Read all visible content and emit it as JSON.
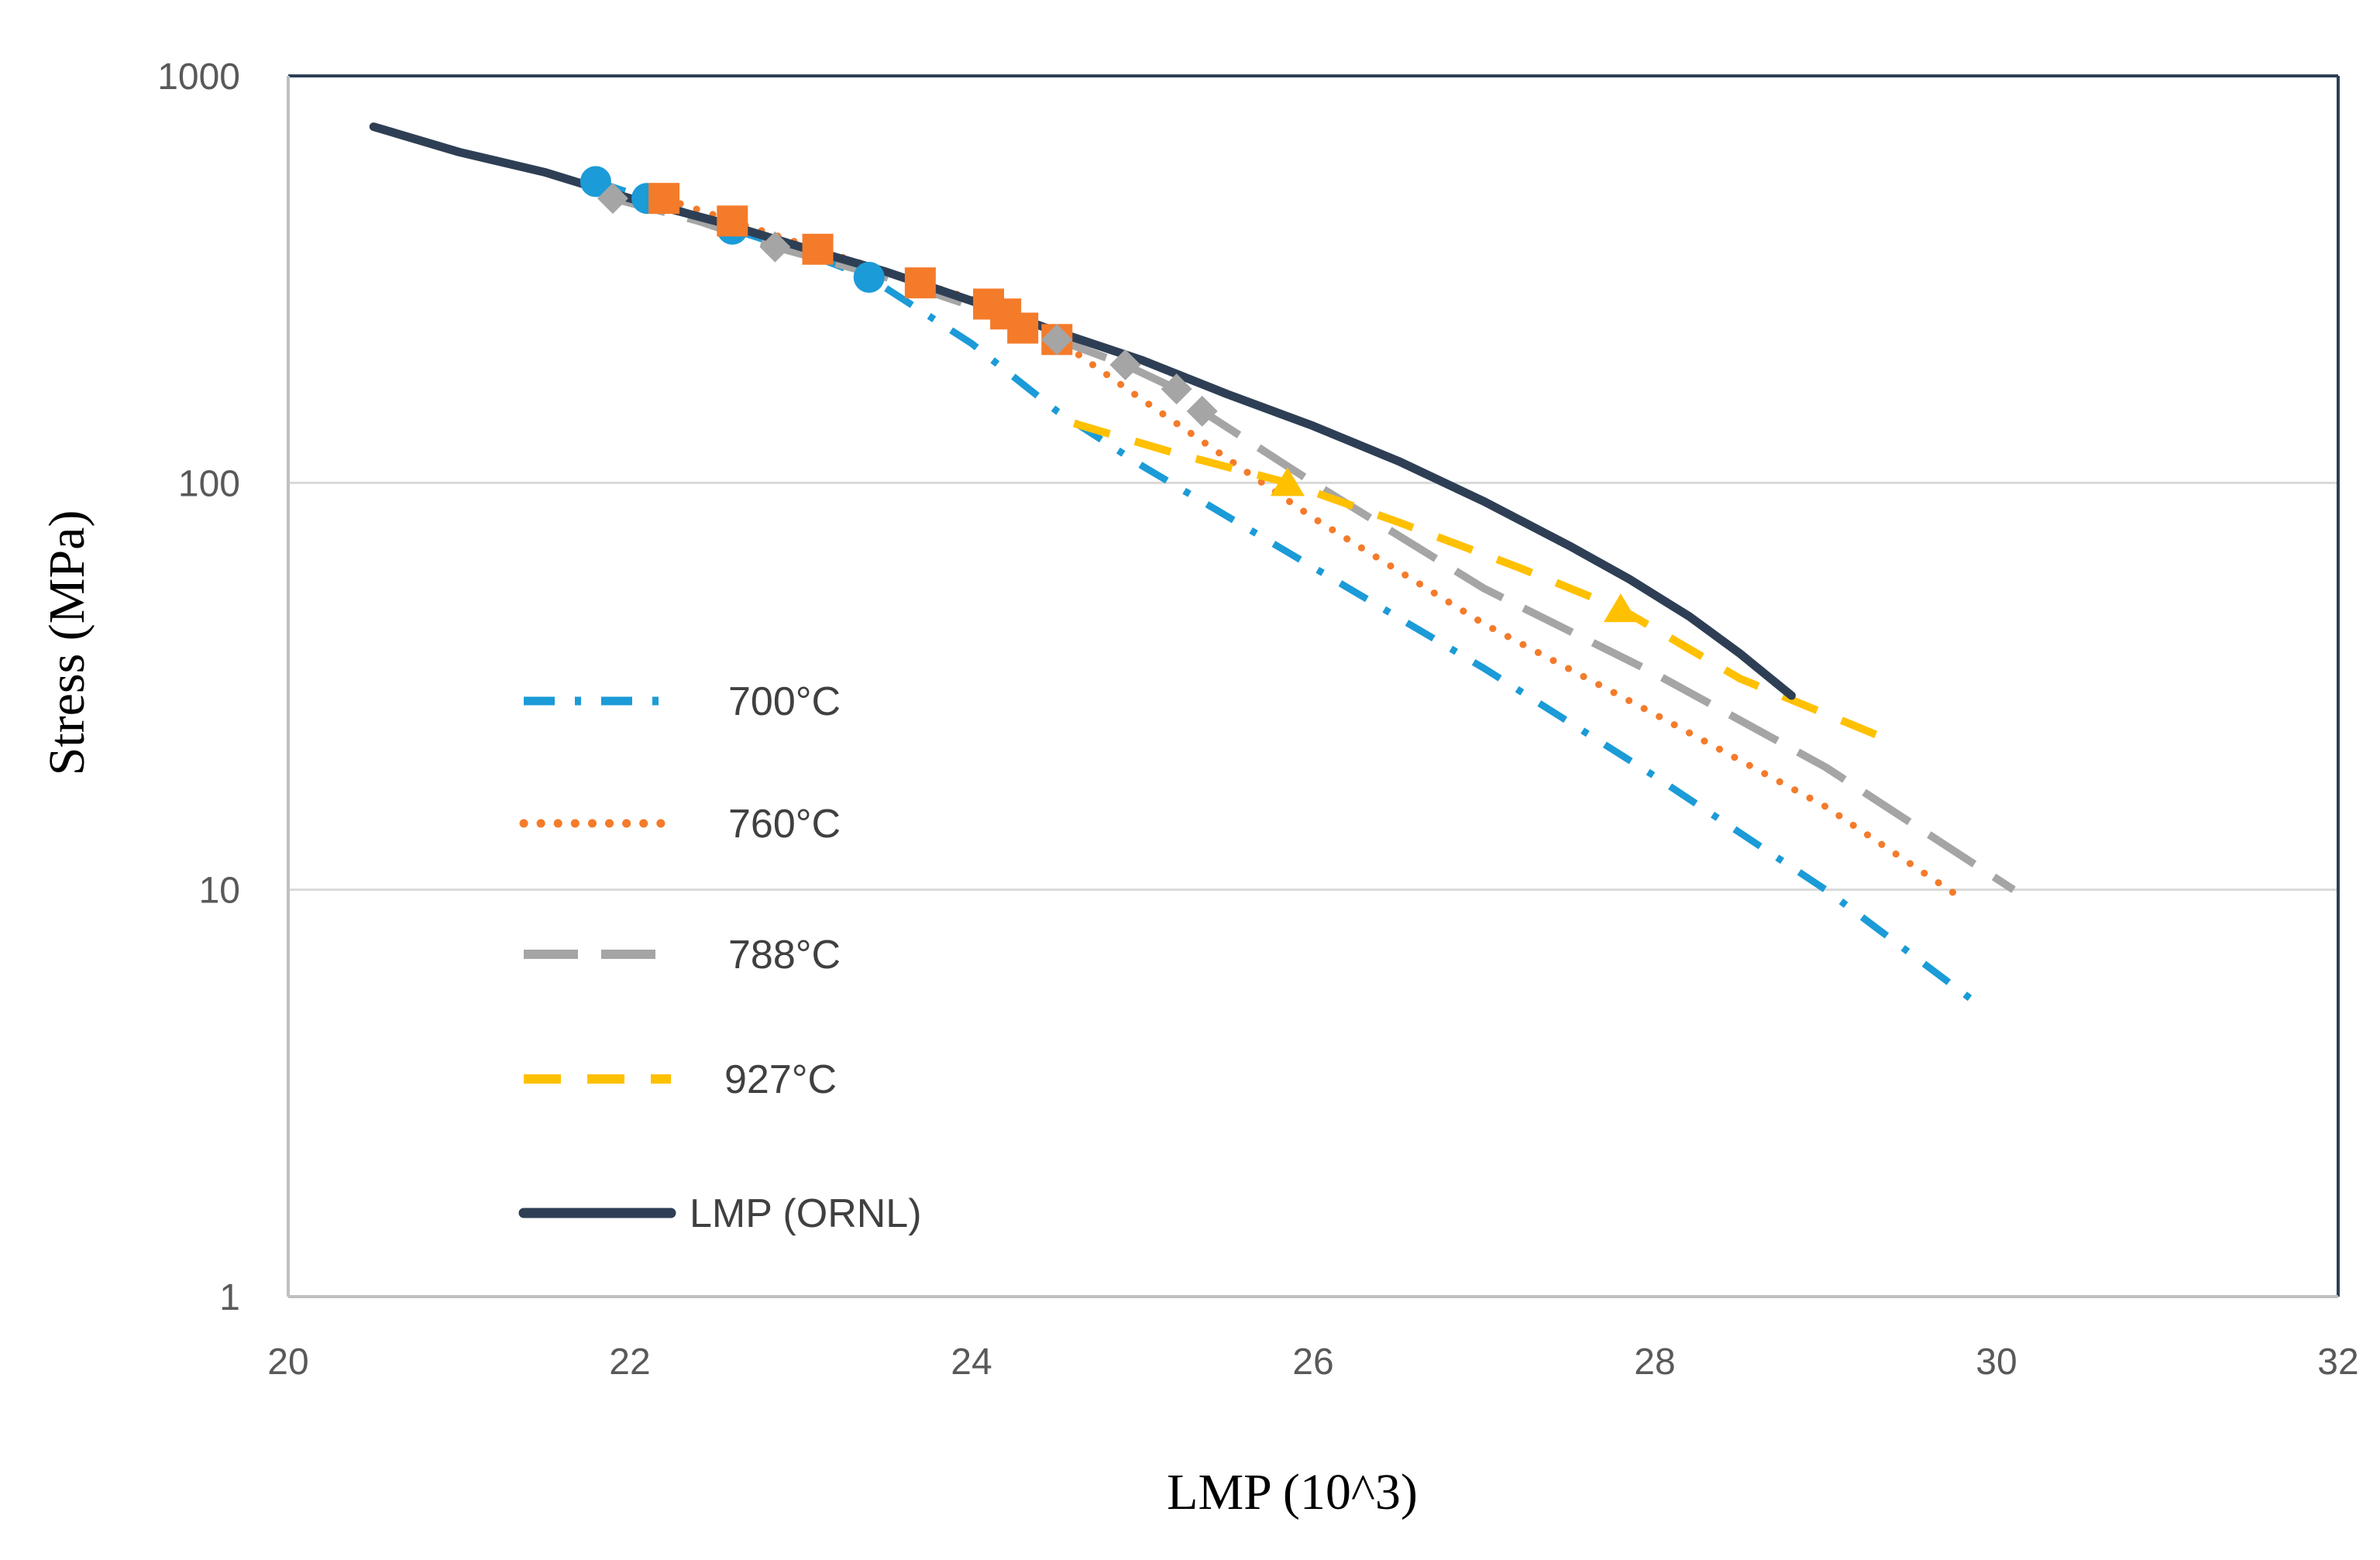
{
  "chart_data": {
    "type": "line",
    "title": "",
    "xlabel": "LMP (10^3)",
    "ylabel": "Stress (MPa)",
    "xlim": [
      20,
      32
    ],
    "ylim": [
      1,
      1000
    ],
    "yscale": "log",
    "x_ticks": [
      "20",
      "22",
      "24",
      "26",
      "28",
      "30",
      "32"
    ],
    "y_ticks": [
      "1",
      "10",
      "100",
      "1000"
    ],
    "gridlines": "horizontal",
    "legend_position": "left-middle",
    "series": [
      {
        "name": "700°C",
        "color": "#1B9BD7",
        "line_style": "dash-dot",
        "marker": "circle",
        "points": [
          [
            21.8,
            550
          ],
          [
            22.1,
            500
          ],
          [
            22.6,
            420
          ],
          [
            23.0,
            370
          ],
          [
            23.4,
            320
          ],
          [
            24.0,
            220
          ],
          [
            24.5,
            150
          ],
          [
            25.0,
            110
          ],
          [
            26.0,
            62
          ],
          [
            27.0,
            35
          ],
          [
            28.0,
            19
          ],
          [
            29.0,
            10
          ],
          [
            29.9,
            5.2
          ]
        ],
        "markers": [
          [
            21.8,
            550
          ],
          [
            22.1,
            500
          ],
          [
            22.6,
            420
          ],
          [
            23.4,
            320
          ]
        ]
      },
      {
        "name": "760°C",
        "color": "#F47B2A",
        "line_style": "dotted",
        "marker": "square",
        "points": [
          [
            22.2,
            500
          ],
          [
            22.6,
            440
          ],
          [
            23.1,
            375
          ],
          [
            23.7,
            310
          ],
          [
            24.1,
            275
          ],
          [
            24.3,
            245
          ],
          [
            24.5,
            225
          ],
          [
            25.0,
            160
          ],
          [
            26.0,
            82
          ],
          [
            27.0,
            45
          ],
          [
            28.0,
            27
          ],
          [
            29.0,
            16
          ],
          [
            29.8,
            9.5
          ]
        ],
        "markers": [
          [
            22.2,
            500
          ],
          [
            22.6,
            440
          ],
          [
            23.1,
            375
          ],
          [
            23.7,
            310
          ],
          [
            24.1,
            275
          ],
          [
            24.2,
            260
          ],
          [
            24.3,
            240
          ],
          [
            24.5,
            225
          ]
        ]
      },
      {
        "name": "788°C",
        "color": "#A5A5A5",
        "line_style": "long-dash",
        "marker": "diamond",
        "points": [
          [
            21.9,
            500
          ],
          [
            22.4,
            440
          ],
          [
            22.85,
            380
          ],
          [
            23.5,
            320
          ],
          [
            24.2,
            255
          ],
          [
            24.5,
            225
          ],
          [
            24.9,
            195
          ],
          [
            25.2,
            170
          ],
          [
            25.35,
            150
          ],
          [
            26.0,
            100
          ],
          [
            27.0,
            55
          ],
          [
            28.0,
            34
          ],
          [
            29.0,
            20
          ],
          [
            30.1,
            10
          ]
        ],
        "markers": [
          [
            21.9,
            500
          ],
          [
            22.85,
            380
          ],
          [
            24.5,
            225
          ],
          [
            24.9,
            195
          ],
          [
            25.2,
            170
          ],
          [
            25.35,
            150
          ]
        ]
      },
      {
        "name": "927°C",
        "color": "#FFC000",
        "line_style": "dashed",
        "marker": "triangle",
        "points": [
          [
            24.6,
            140
          ],
          [
            25.2,
            118
          ],
          [
            25.85,
            100
          ],
          [
            26.5,
            80
          ],
          [
            27.2,
            62
          ],
          [
            27.8,
            49
          ],
          [
            28.5,
            33
          ],
          [
            29.3,
            24
          ]
        ],
        "markers": [
          [
            25.85,
            100
          ],
          [
            27.8,
            49
          ]
        ]
      },
      {
        "name": "LMP (ORNL)",
        "color": "#2E3F55",
        "line_style": "solid",
        "marker": "none",
        "points": [
          [
            20.5,
            750
          ],
          [
            21.0,
            650
          ],
          [
            21.5,
            580
          ],
          [
            22.0,
            500
          ],
          [
            22.5,
            440
          ],
          [
            23.0,
            380
          ],
          [
            23.5,
            330
          ],
          [
            24.0,
            280
          ],
          [
            24.5,
            235
          ],
          [
            25.0,
            200
          ],
          [
            25.5,
            165
          ],
          [
            26.0,
            138
          ],
          [
            26.5,
            113
          ],
          [
            27.0,
            90
          ],
          [
            27.5,
            70
          ],
          [
            27.85,
            58
          ],
          [
            28.2,
            47
          ],
          [
            28.5,
            38
          ],
          [
            28.8,
            30
          ]
        ],
        "markers": []
      }
    ]
  }
}
